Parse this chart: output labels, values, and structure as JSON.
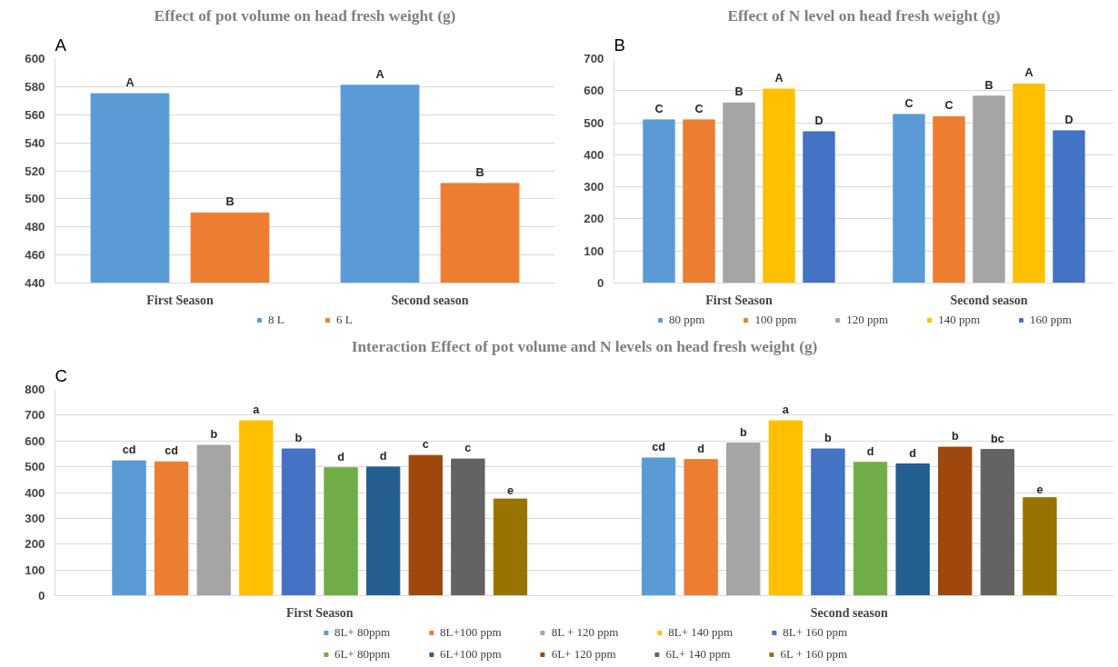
{
  "chart_data": [
    {
      "type": "bar",
      "title": "Effect of pot volume on head fresh weight (g)",
      "annotations": [
        "A"
      ],
      "categories": [
        "First Season",
        "Second season"
      ],
      "ylim": [
        440,
        600
      ],
      "yticks": [
        440,
        460,
        480,
        500,
        520,
        540,
        560,
        580,
        600
      ],
      "grid": "y",
      "legend": "bottom",
      "series": [
        {
          "name": "8 L",
          "color": "#5b9bd5",
          "values": [
            575,
            581
          ],
          "value_labels": [
            "A",
            "A"
          ]
        },
        {
          "name": "6 L",
          "color": "#ed7d31",
          "values": [
            490,
            511
          ],
          "value_labels": [
            "B",
            "B"
          ]
        }
      ]
    },
    {
      "type": "bar",
      "title": "Effect of N level on head fresh weight (g)",
      "annotations": [
        "B"
      ],
      "categories": [
        "First Season",
        "Second season"
      ],
      "ylim": [
        0,
        700
      ],
      "yticks": [
        0,
        100,
        200,
        300,
        400,
        500,
        600,
        700
      ],
      "grid": "y",
      "legend": "bottom",
      "series": [
        {
          "name": "80 ppm",
          "color": "#5b9bd5",
          "values": [
            509,
            526
          ],
          "value_labels": [
            "C",
            "C"
          ]
        },
        {
          "name": "100 ppm",
          "color": "#ed7d31",
          "values": [
            509,
            519
          ],
          "value_labels": [
            "C",
            "C"
          ]
        },
        {
          "name": "120 ppm",
          "color": "#a5a5a5",
          "values": [
            562,
            583
          ],
          "value_labels": [
            "B",
            "B"
          ]
        },
        {
          "name": "140 ppm",
          "color": "#ffc000",
          "values": [
            605,
            621
          ],
          "value_labels": [
            "A",
            "A"
          ]
        },
        {
          "name": "160 ppm",
          "color": "#4472c4",
          "values": [
            472,
            475
          ],
          "value_labels": [
            "D",
            "D"
          ]
        }
      ]
    },
    {
      "type": "bar",
      "title": "Interaction Effect of pot volume and N levels on head fresh weight (g)",
      "annotations": [
        "C"
      ],
      "categories": [
        "First Season",
        "Second season"
      ],
      "ylim": [
        0,
        800
      ],
      "yticks": [
        0,
        100,
        200,
        300,
        400,
        500,
        600,
        700,
        800
      ],
      "grid": "y",
      "legend": "bottom",
      "series": [
        {
          "name": "8L+ 80ppm",
          "color": "#5b9bd5",
          "values": [
            523,
            534
          ],
          "value_labels": [
            "cd",
            "cd"
          ]
        },
        {
          "name": "8L+100 ppm",
          "color": "#ed7d31",
          "values": [
            519,
            528
          ],
          "value_labels": [
            "cd",
            "d"
          ]
        },
        {
          "name": "8L + 120 ppm",
          "color": "#a5a5a5",
          "values": [
            583,
            592
          ],
          "value_labels": [
            "b",
            "b"
          ]
        },
        {
          "name": "8L+ 140 ppm",
          "color": "#ffc000",
          "values": [
            678,
            678
          ],
          "value_labels": [
            "a",
            "a"
          ]
        },
        {
          "name": "8L+ 160 ppm",
          "color": "#4472c4",
          "values": [
            569,
            569
          ],
          "value_labels": [
            "b",
            "b"
          ]
        },
        {
          "name": "6L+ 80ppm",
          "color": "#70ad47",
          "values": [
            496,
            517
          ],
          "value_labels": [
            "d",
            "d"
          ]
        },
        {
          "name": "6L+100 ppm",
          "color": "#255e91",
          "values": [
            499,
            511
          ],
          "value_labels": [
            "d",
            "d"
          ]
        },
        {
          "name": "6L+ 120 ppm",
          "color": "#9e480e",
          "values": [
            544,
            576
          ],
          "value_labels": [
            "c",
            "b"
          ]
        },
        {
          "name": "6L+ 140 ppm",
          "color": "#636363",
          "values": [
            530,
            567
          ],
          "value_labels": [
            "c",
            "bc"
          ]
        },
        {
          "name": "6L + 160 ppm",
          "color": "#997300",
          "values": [
            375,
            380
          ],
          "value_labels": [
            "e",
            "e"
          ]
        }
      ]
    }
  ]
}
